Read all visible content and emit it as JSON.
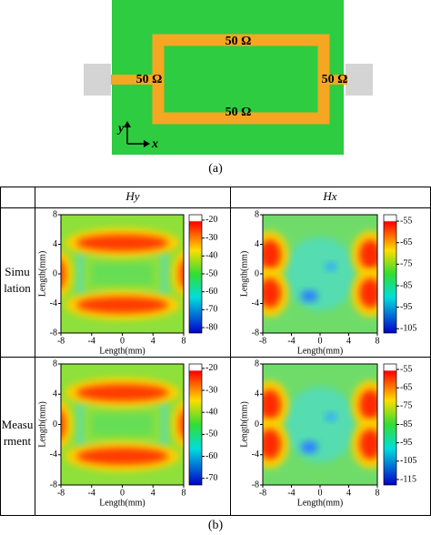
{
  "figure_a": {
    "labels": [
      "50 Ω",
      "50 Ω",
      "50 Ω",
      "50 Ω"
    ],
    "axis_y": "y",
    "axis_x": "x",
    "caption": "(a)"
  },
  "table": {
    "columns": [
      "Hy",
      "Hx"
    ],
    "rows": [
      {
        "label": [
          "Simu",
          "lation"
        ],
        "plots": [
          {
            "xlabel": "Length(mm)",
            "ylabel": "Length(mm)",
            "xlim": [
              -8,
              8
            ],
            "ylim": [
              -8,
              8
            ],
            "xticks": [
              -8,
              -4,
              0,
              4,
              8
            ],
            "yticks": [
              -8,
              -4,
              0,
              4,
              8
            ],
            "clim": [
              -17,
              -83
            ],
            "cticks": [
              -20,
              -30,
              -40,
              -50,
              -60,
              -70,
              -80
            ]
          },
          {
            "xlabel": "Length(mm)",
            "ylabel": "Length(mm)",
            "xlim": [
              -8,
              8
            ],
            "ylim": [
              -8,
              8
            ],
            "xticks": [
              -8,
              -4,
              0,
              4,
              8
            ],
            "yticks": [
              -8,
              -4,
              0,
              4,
              8
            ],
            "clim": [
              -52,
              -107
            ],
            "cticks": [
              -55,
              -65,
              -75,
              -85,
              -95,
              -105
            ]
          }
        ]
      },
      {
        "label": [
          "Measu",
          "rment"
        ],
        "plots": [
          {
            "xlabel": "Length(mm)",
            "ylabel": "Length(mm)",
            "xlim": [
              -8,
              8
            ],
            "ylim": [
              -8,
              8
            ],
            "xticks": [
              -8,
              -4,
              0,
              4,
              8
            ],
            "yticks": [
              -8,
              -4,
              0,
              4,
              8
            ],
            "clim": [
              -18,
              -73
            ],
            "cticks": [
              -20,
              -30,
              -40,
              -50,
              -60,
              -70
            ]
          },
          {
            "xlabel": "Length(mm)",
            "ylabel": "Length(mm)",
            "xlim": [
              -8,
              8
            ],
            "ylim": [
              -8,
              8
            ],
            "xticks": [
              -8,
              -4,
              0,
              4,
              8
            ],
            "yticks": [
              -8,
              -4,
              0,
              4,
              8
            ],
            "clim": [
              -52,
              -118
            ],
            "cticks": [
              -55,
              -65,
              -75,
              -85,
              -95,
              -105,
              -115
            ]
          }
        ]
      }
    ]
  },
  "caption_b": "(b)"
}
